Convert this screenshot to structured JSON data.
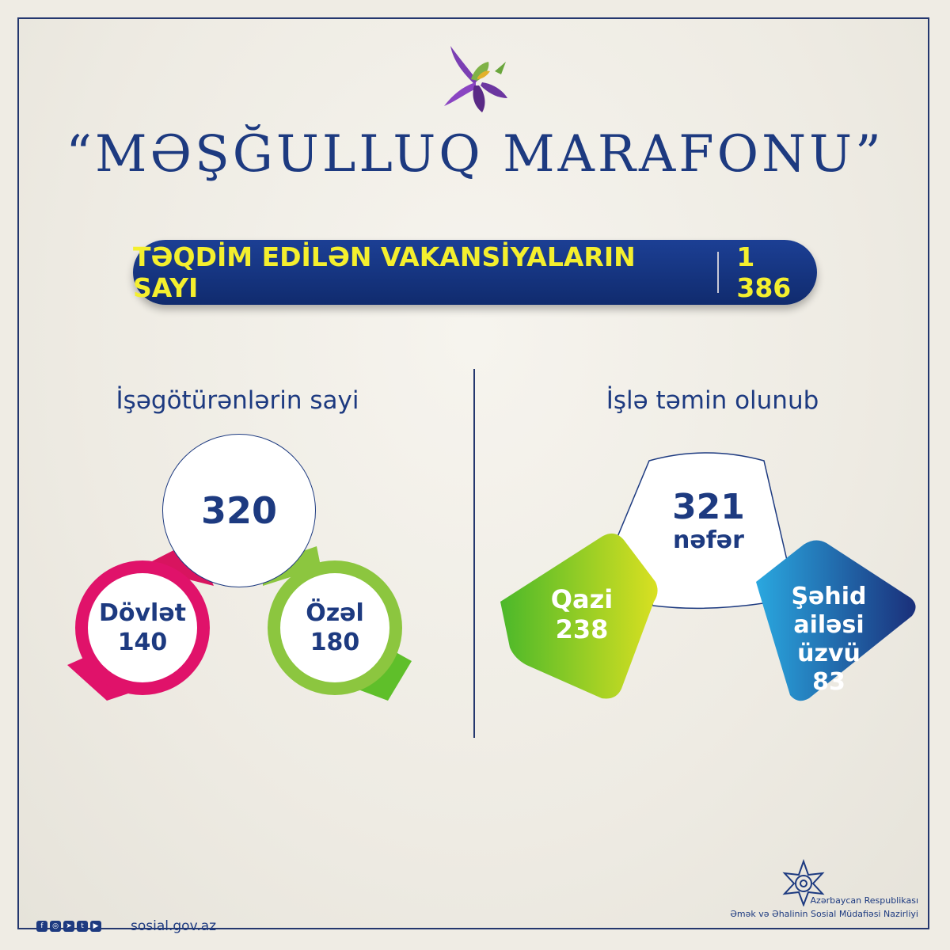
{
  "title": "“MƏŞĞULLUQ MARAFONU”",
  "banner": {
    "label": "TƏQDİM EDİLƏN VAKANSİYALARIN SAYI",
    "value": "1 386"
  },
  "employers": {
    "heading": "İşəgötürənlərin sayi",
    "total": "320",
    "state": {
      "label": "Dövlət",
      "value": "140"
    },
    "private": {
      "label": "Özəl",
      "value": "180"
    }
  },
  "employed": {
    "heading": "İşlə təmin olunub",
    "total": "321",
    "unit": "nəfər",
    "veterans": {
      "label": "Qazi",
      "value": "238"
    },
    "martyr_family": {
      "label": "Şəhid ailəsi üzvü",
      "value": "83"
    }
  },
  "footer": {
    "site": "sosial.gov.az",
    "social_icons": [
      "facebook-icon",
      "instagram-icon",
      "telegram-icon",
      "twitter-icon",
      "youtube-icon"
    ],
    "ministry_line1": "Azərbaycan Respublikası",
    "ministry_line2": "Əmək və Əhalinin Sosial Müdafiəsi Nazirliyi"
  },
  "colors": {
    "navy": "#1d3a80",
    "banner_text": "#f4ef2e",
    "magenta": "#e0126a",
    "lime": "#8cc63f",
    "green": "#5fbf2a",
    "blue": "#2a9fdc"
  }
}
